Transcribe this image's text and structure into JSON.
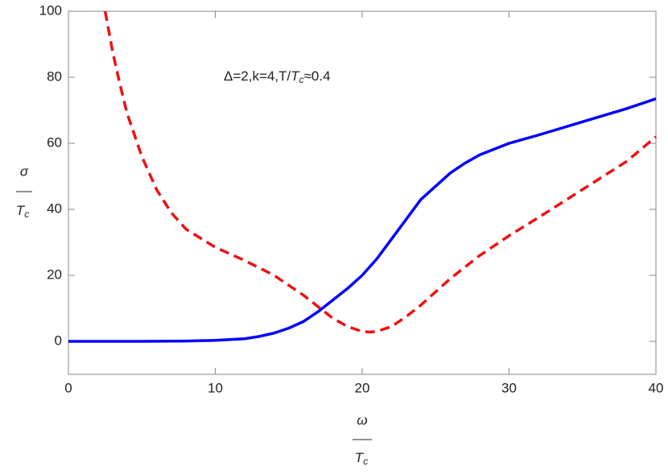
{
  "chart_data": {
    "type": "line",
    "y_label": {
      "numerator": "σ",
      "denominator_symbol": "T",
      "denominator_subscript": "c"
    },
    "x_label": {
      "numerator": "ω",
      "denominator_symbol": "T",
      "denominator_subscript": "c"
    },
    "annotation": [
      "Δ=2,k=4,T/",
      "T",
      "c",
      "≈0.4"
    ],
    "xlim": [
      0,
      40
    ],
    "xticks": [
      0,
      10,
      20,
      30,
      40
    ],
    "ylim": [
      -10,
      100
    ],
    "yticks": [
      0,
      20,
      40,
      60,
      80,
      100
    ],
    "series": [
      {
        "color": "#0000ff",
        "dash": false,
        "x": [
          0,
          5,
          8,
          10,
          12,
          13,
          14,
          15,
          16,
          17,
          18,
          19,
          20,
          21,
          22,
          23,
          24,
          25,
          26,
          27,
          28,
          30,
          32,
          35,
          38,
          40
        ],
        "values": [
          0,
          0,
          0.1,
          0.3,
          0.8,
          1.5,
          2.5,
          4,
          6,
          9,
          12.5,
          16,
          20,
          25,
          31,
          37,
          43,
          47,
          51,
          54,
          56.5,
          60,
          62.5,
          66.5,
          70.5,
          73.5
        ]
      },
      {
        "color": "#ee1111",
        "dash": true,
        "x": [
          2.5,
          3,
          3.5,
          4,
          5,
          6,
          7,
          8,
          10,
          12,
          14,
          16,
          17,
          18,
          19,
          20,
          20.5,
          21,
          22,
          23,
          24,
          25,
          26,
          28,
          30,
          32,
          35,
          38,
          40
        ],
        "values": [
          100,
          88,
          78,
          69,
          56,
          46,
          39,
          34,
          28.5,
          24.5,
          20,
          14,
          10.5,
          7,
          4.5,
          3,
          2.8,
          3,
          4.5,
          7.5,
          11,
          15,
          19,
          26,
          32,
          37.5,
          46,
          54.5,
          62
        ]
      }
    ]
  }
}
